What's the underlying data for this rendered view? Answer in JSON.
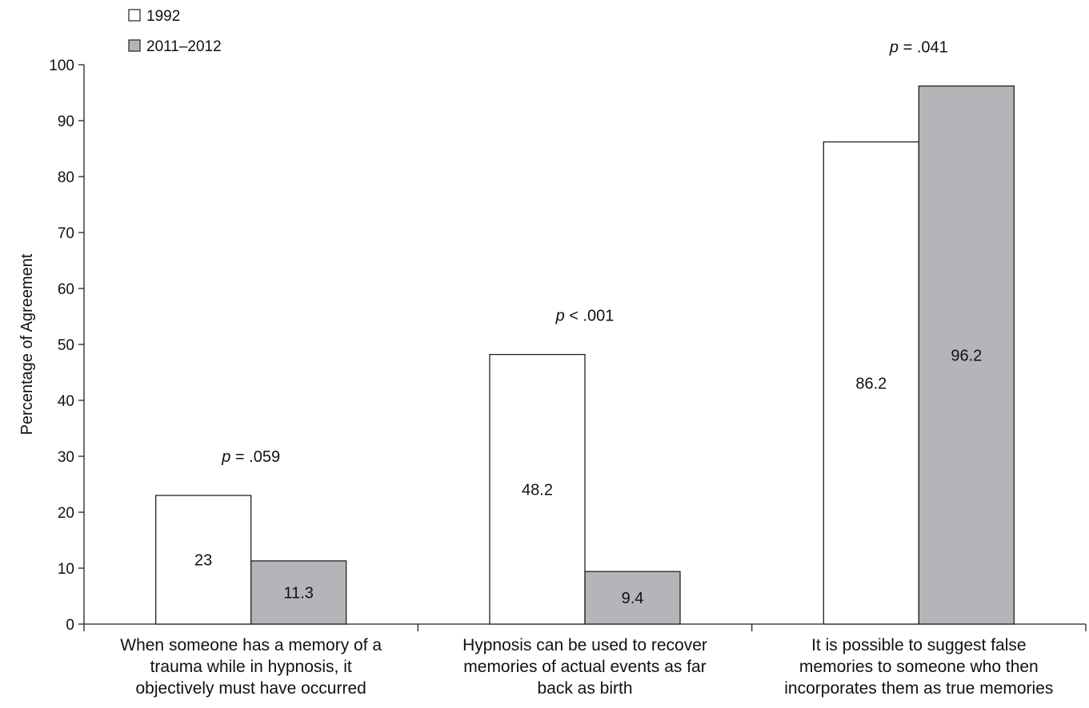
{
  "chart_data": {
    "type": "bar",
    "title": "",
    "ylabel": "Percentage of Agreement",
    "xlabel": "",
    "ylim": [
      0,
      100
    ],
    "yticks": [
      0,
      10,
      20,
      30,
      40,
      50,
      60,
      70,
      80,
      90,
      100
    ],
    "grid": false,
    "legend_position": "top-left",
    "categories": [
      {
        "label_lines": [
          "When someone has a memory of a",
          "trauma while in hypnosis, it",
          "objectively must have occurred"
        ],
        "p_prefix": "p",
        "p_rest": " = .059"
      },
      {
        "label_lines": [
          "Hypnosis can be used to recover",
          "memories of actual events as far",
          "back as birth"
        ],
        "p_prefix": "p",
        "p_rest": " < .001"
      },
      {
        "label_lines": [
          "It is possible to suggest false",
          "memories to someone who then",
          "incorporates them as true memories"
        ],
        "p_prefix": "p",
        "p_rest": " = .041"
      }
    ],
    "series": [
      {
        "name": "1992",
        "color": "#ffffff",
        "values": [
          23,
          48.2,
          86.2
        ],
        "value_labels": [
          "23",
          "48.2",
          "86.2"
        ]
      },
      {
        "name": "2011–2012",
        "color": "#b4b5b8",
        "values": [
          11.3,
          9.4,
          96.2
        ],
        "value_labels": [
          "11.3",
          "9.4",
          "96.2"
        ]
      }
    ]
  }
}
